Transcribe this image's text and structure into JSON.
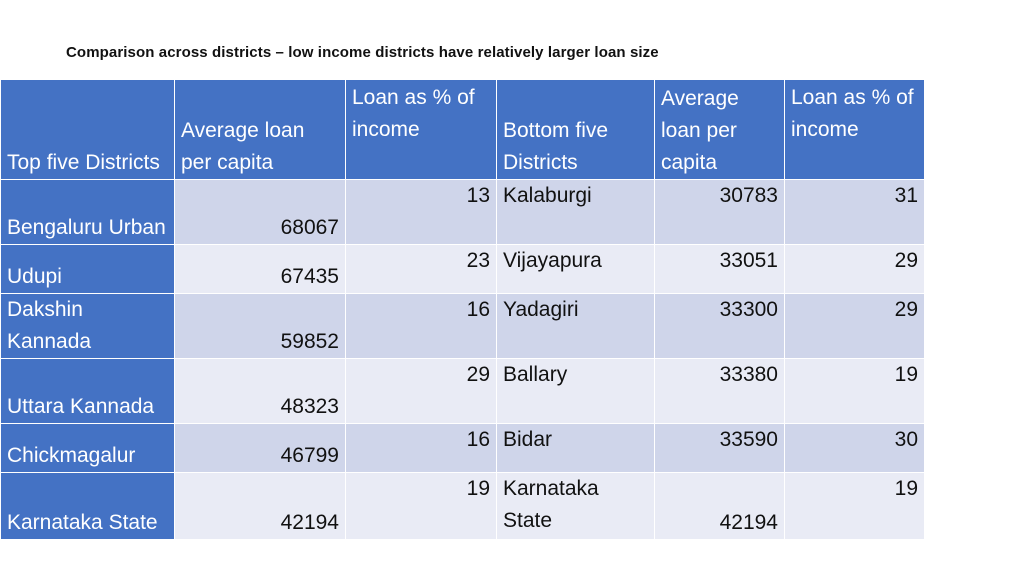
{
  "title": "Comparison across districts – low income districts have relatively larger loan size",
  "table": {
    "headers": [
      "Top five Districts",
      "Average loan per capita",
      "Loan as % of income",
      "Bottom five Districts",
      "Average loan per capita",
      "Loan as % of income"
    ],
    "rows": [
      [
        "Bengaluru Urban",
        "68067",
        "13",
        "Kalaburgi",
        "30783",
        "31"
      ],
      [
        "Udupi",
        "67435",
        "23",
        "Vijayapura",
        "33051",
        "29"
      ],
      [
        "Dakshin Kannada",
        "59852",
        "16",
        "Yadagiri",
        "33300",
        "29"
      ],
      [
        "Uttara Kannada",
        "48323",
        "29",
        "Ballary",
        "33380",
        "19"
      ],
      [
        "Chickmagalur",
        "46799",
        "16",
        "Bidar",
        "33590",
        "30"
      ],
      [
        "Karnataka State",
        "42194",
        "19",
        "Karnataka State",
        "42194",
        "19"
      ]
    ]
  },
  "colors": {
    "header_bg": "#4472c4",
    "row_band_dark": "#cfd5ea",
    "row_band_light": "#e9ebf5"
  }
}
